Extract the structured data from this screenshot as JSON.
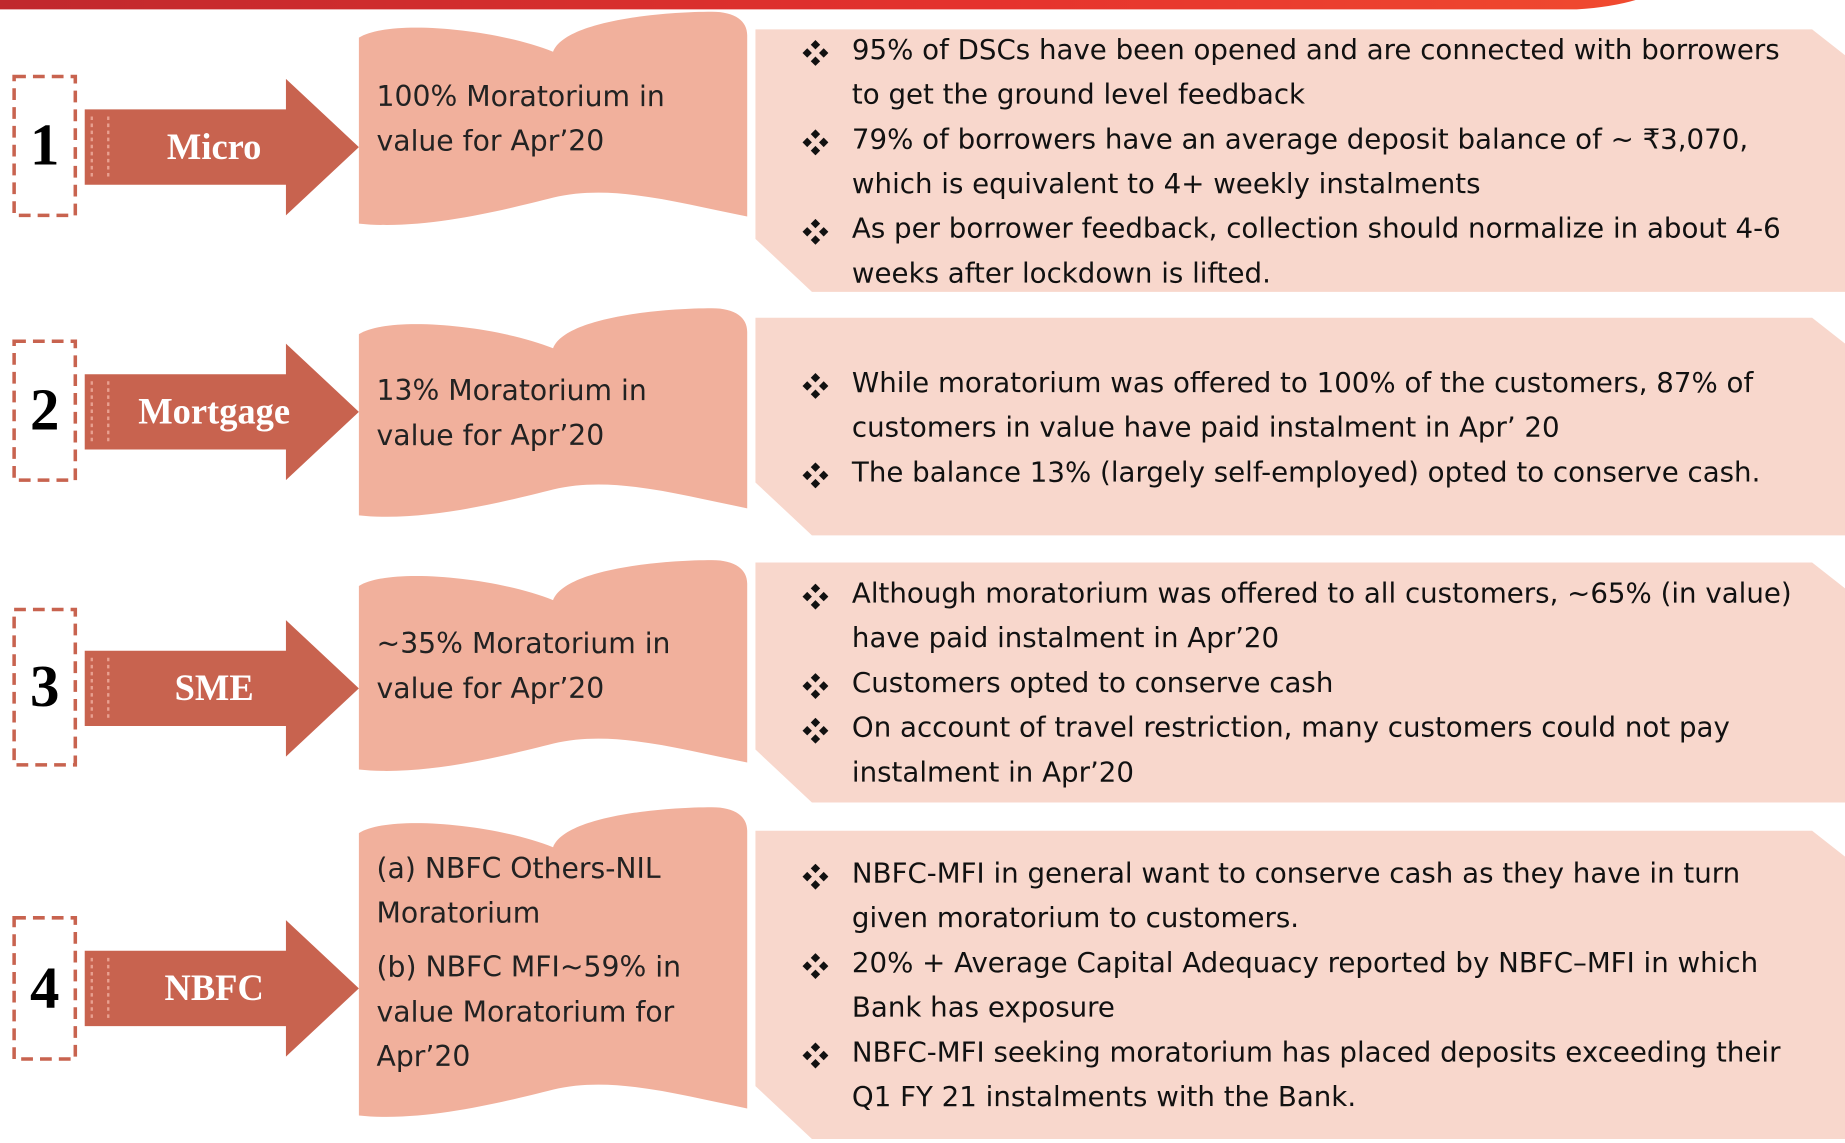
{
  "rows": [
    {
      "number": "1",
      "label": "Micro",
      "summary": [
        "100% Moratorium in value for Apr’20"
      ],
      "bullets": [
        "95% of DSCs have been opened and are connected with borrowers to get the ground level feedback",
        "79% of borrowers have an average deposit balance of ~ ₹3,070, which is equivalent to 4+ weekly instalments",
        "As per borrower feedback, collection should normalize in about 4-6 weeks after lockdown is lifted."
      ]
    },
    {
      "number": "2",
      "label": "Mortgage",
      "summary": [
        "13% Moratorium in value for Apr’20"
      ],
      "bullets": [
        "While moratorium was offered to 100% of the customers, 87% of customers in value have paid instalment in Apr’ 20",
        "The balance 13% (largely self-employed) opted to conserve cash."
      ]
    },
    {
      "number": "3",
      "label": "SME",
      "summary": [
        "~35% Moratorium in value for Apr’20"
      ],
      "bullets": [
        "Although moratorium was offered to all customers, ~65% (in value) have paid instalment in Apr’20",
        "Customers opted to conserve cash",
        "On account of travel restriction, many customers could not pay instalment in Apr’20"
      ]
    },
    {
      "number": "4",
      "label": "NBFC",
      "summary": [
        "(a) NBFC Others-NIL Moratorium",
        "(b) NBFC MFI~59% in value Moratorium for Apr’20"
      ],
      "bullets": [
        "NBFC-MFI in general want to conserve cash as they have in turn given moratorium to customers.",
        "20% + Average Capital Adequacy reported by NBFC–MFI in which Bank has exposure",
        "NBFC-MFI seeking moratorium has placed deposits exceeding their Q1 FY 21 instalments with the Bank."
      ]
    }
  ]
}
